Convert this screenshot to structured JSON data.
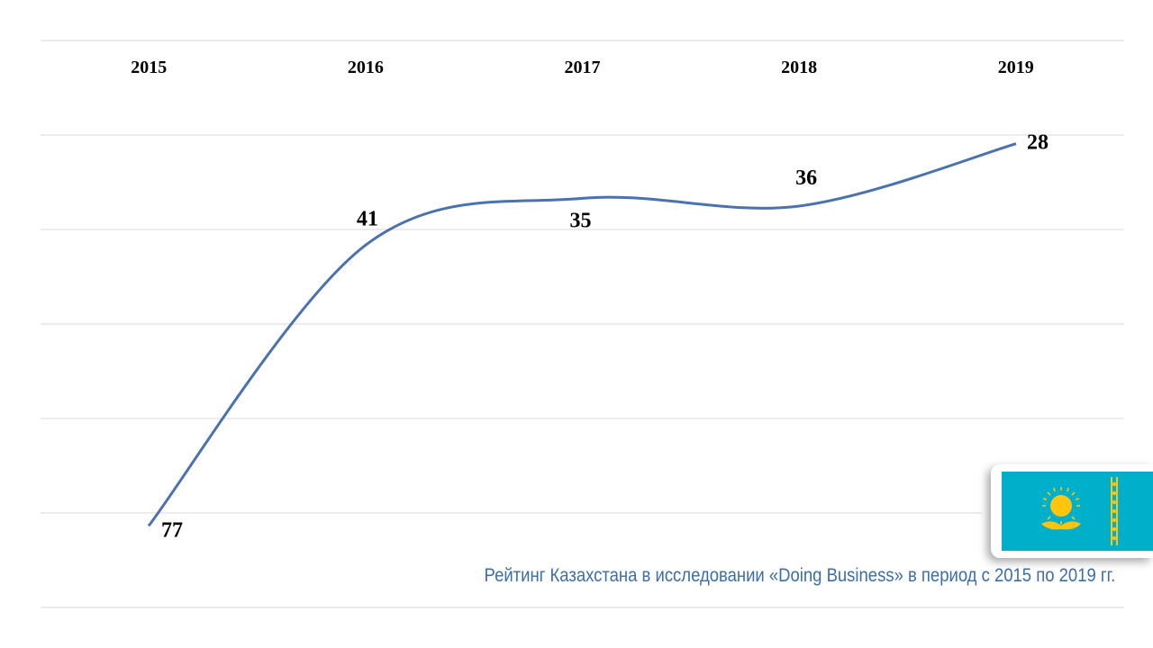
{
  "chart_data": {
    "type": "line",
    "categories": [
      "2015",
      "2016",
      "2017",
      "2018",
      "2019"
    ],
    "values": [
      77,
      41,
      35,
      36,
      28
    ],
    "data_labels": [
      "77",
      "41",
      "35",
      "36",
      "28"
    ],
    "y_reversed": true,
    "ylim": [
      84,
      24
    ],
    "grid": true,
    "line_style": "smooth",
    "series_color": "#4a72b0"
  },
  "caption": "Рейтинг Казахстана в исследовании «Doing Business» в период с 2015 по 2019 гг.",
  "flag": {
    "icon": "kazakhstan-flag-icon",
    "background_color": "#00afca",
    "emblem_color": "#fec50c"
  }
}
